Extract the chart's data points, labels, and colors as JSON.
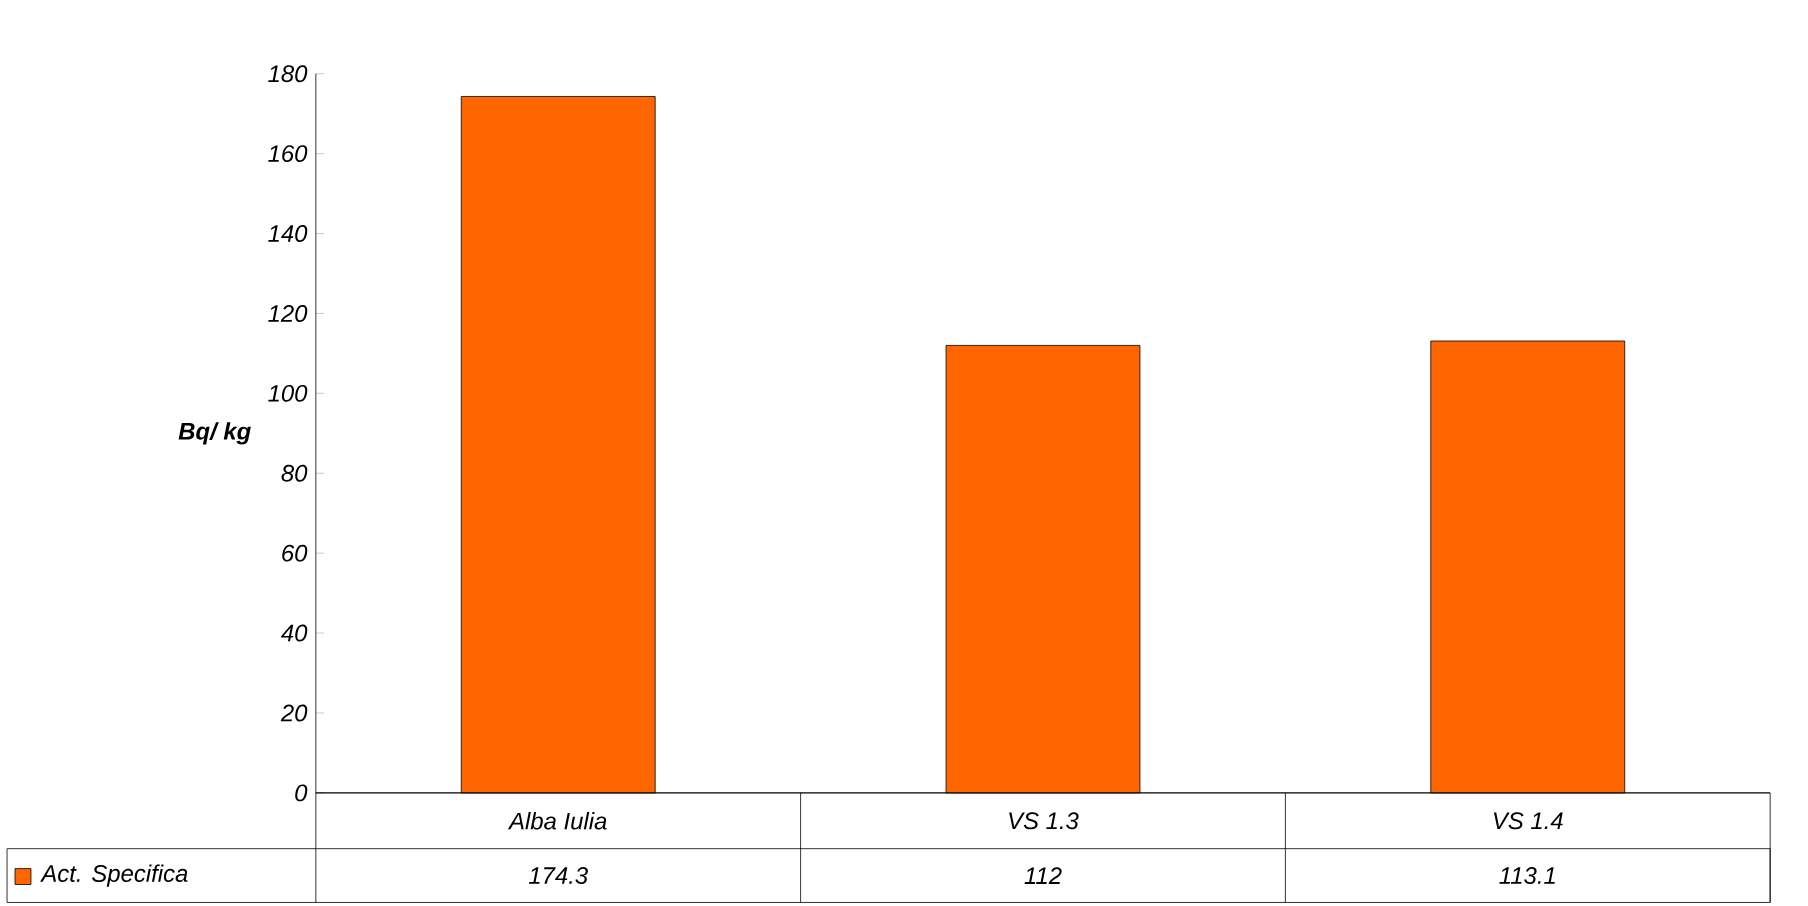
{
  "chart_data": {
    "type": "bar",
    "ylabel": "Bq/ kg",
    "categories": [
      "Alba Iulia",
      "VS 1.3",
      "VS 1.4"
    ],
    "series": [
      {
        "name": "Act. Specifica",
        "color": "#ff6600",
        "values": [
          174.3,
          112,
          113.1
        ]
      }
    ],
    "ylim": [
      0,
      180
    ],
    "yticks": [
      0,
      20,
      40,
      60,
      80,
      100,
      120,
      140,
      160,
      180
    ],
    "data_labels": true,
    "legend": "bottom left"
  }
}
